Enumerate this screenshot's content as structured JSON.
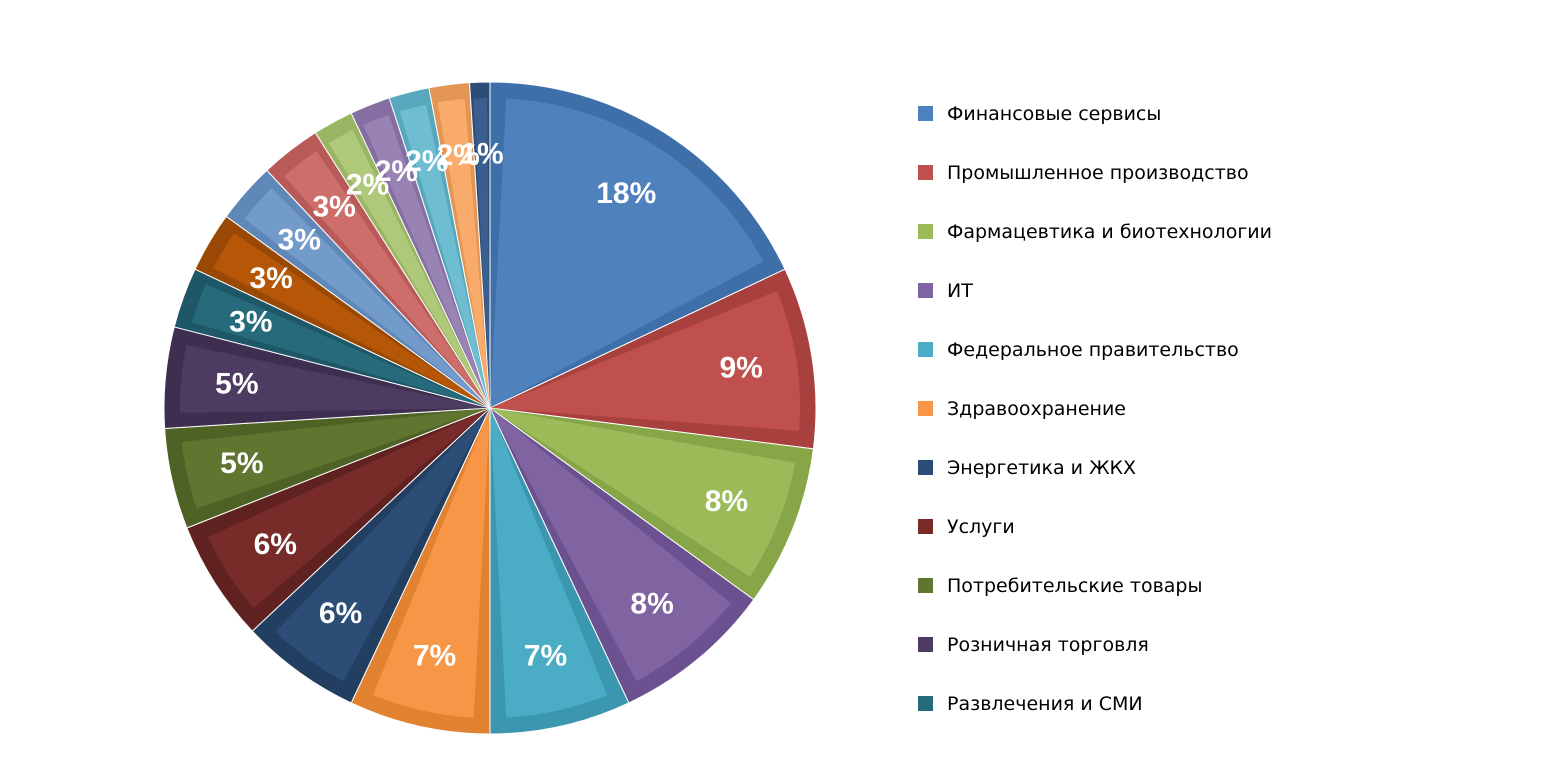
{
  "chart_data": {
    "type": "pie",
    "start_angle_deg": 0,
    "direction": "clockwise",
    "legend_position": "right",
    "slices": [
      {
        "label": "Финансовые сервисы",
        "value": 18,
        "display": "18%",
        "color": "#4F81BD",
        "dark": "#3F6FA8"
      },
      {
        "label": "Промышленное производство",
        "value": 9,
        "display": "9%",
        "color": "#C0504D",
        "dark": "#A8413E"
      },
      {
        "label": "Фармацевтика и биотехнологии",
        "value": 8,
        "display": "8%",
        "color": "#9BBB59",
        "dark": "#86A647"
      },
      {
        "label": "ИТ",
        "value": 8,
        "display": "8%",
        "color": "#8064A2",
        "dark": "#6B5190"
      },
      {
        "label": "Федеральное правительство",
        "value": 7,
        "display": "7%",
        "color": "#4BACC6",
        "dark": "#3B97B0"
      },
      {
        "label": "Здравоохранение",
        "value": 7,
        "display": "7%",
        "color": "#F79646",
        "dark": "#E0822F"
      },
      {
        "label": "Энергетика и ЖКХ",
        "value": 6,
        "display": "6%",
        "color": "#2C4D75",
        "dark": "#223F61"
      },
      {
        "label": "Услуги",
        "value": 6,
        "display": "6%",
        "color": "#772C2A",
        "dark": "#602220"
      },
      {
        "label": "Потребительские товары",
        "value": 5,
        "display": "5%",
        "color": "#5F7530",
        "dark": "#4E6226"
      },
      {
        "label": "Розничная торговля",
        "value": 5,
        "display": "5%",
        "color": "#4D3B62",
        "dark": "#3E2F50"
      },
      {
        "label": "Развлечения и СМИ",
        "value": 3,
        "display": "3%",
        "color": "#276A7C",
        "dark": "#1E5766"
      },
      {
        "label": "",
        "value": 3,
        "display": "3%",
        "color": "#B65708",
        "dark": "#9A4905"
      },
      {
        "label": "",
        "value": 3,
        "display": "3%",
        "color": "#729ACA",
        "dark": "#5F87B8"
      },
      {
        "label": "",
        "value": 3,
        "display": "3%",
        "color": "#CD6E6B",
        "dark": "#B85B58"
      },
      {
        "label": "",
        "value": 2,
        "display": "2%",
        "color": "#AFC97A",
        "dark": "#9AB564"
      },
      {
        "label": "",
        "value": 2,
        "display": "2%",
        "color": "#9983B5",
        "dark": "#846EA2"
      },
      {
        "label": "",
        "value": 2,
        "display": "2%",
        "color": "#6FBDD1",
        "dark": "#58A8BD"
      },
      {
        "label": "",
        "value": 2,
        "display": "2%",
        "color": "#F9AB6B",
        "dark": "#E39553"
      },
      {
        "label": "",
        "value": 1,
        "display": "1%",
        "color": "#3A5F8F",
        "dark": "#2C4D75"
      }
    ]
  },
  "legend": {
    "items": [
      {
        "label": "Финансовые сервисы",
        "color": "#4F81BD"
      },
      {
        "label": "Промышленное производство",
        "color": "#C0504D"
      },
      {
        "label": "Фармацевтика и биотехнологии",
        "color": "#9BBB59"
      },
      {
        "label": "ИТ",
        "color": "#8064A2"
      },
      {
        "label": "Федеральное правительство",
        "color": "#4BACC6"
      },
      {
        "label": "Здравоохранение",
        "color": "#F79646"
      },
      {
        "label": "Энергетика и ЖКХ",
        "color": "#2C4D75"
      },
      {
        "label": "Услуги",
        "color": "#772C2A"
      },
      {
        "label": "Потребительские товары",
        "color": "#5F7530"
      },
      {
        "label": "Розничная торговля",
        "color": "#4D3B62"
      },
      {
        "label": "Развлечения и СМИ",
        "color": "#276A7C"
      }
    ]
  }
}
